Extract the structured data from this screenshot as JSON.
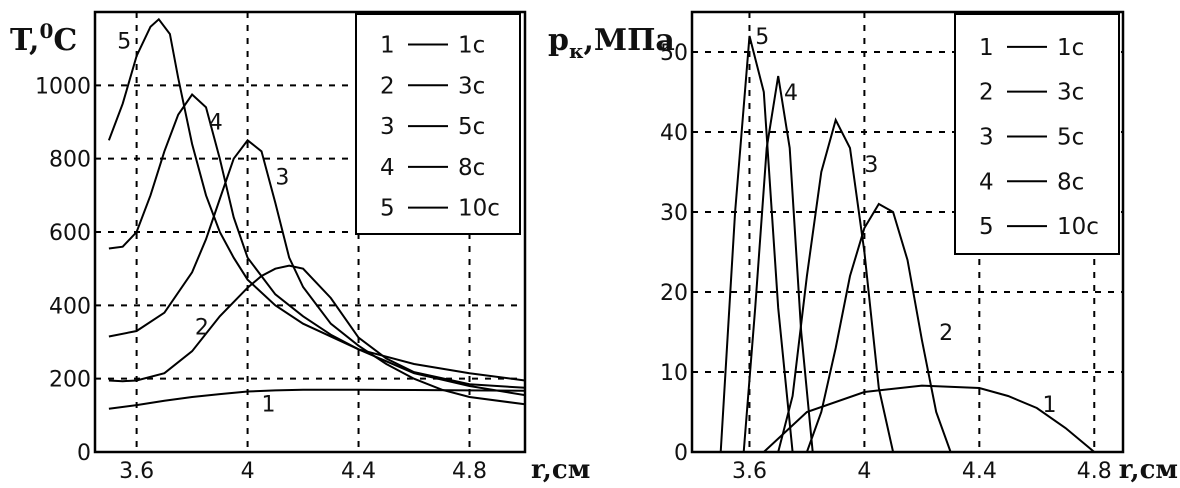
{
  "chart_data": [
    {
      "type": "line",
      "ylabel": "T,",
      "ylabel_sup": "0",
      "ylabel_end": "C",
      "xlabel": "r,см",
      "xlim": [
        3.45,
        5.0
      ],
      "ylim": [
        0,
        1200
      ],
      "xticks": [
        3.6,
        4,
        4.4,
        4.8
      ],
      "xtick_labels": [
        "3.6",
        "4",
        "4.4",
        "4.8"
      ],
      "yticks": [
        0,
        200,
        400,
        600,
        800,
        1000
      ],
      "ytick_labels": [
        "0",
        "200",
        "400",
        "600",
        "800",
        "1000"
      ],
      "grid": true,
      "legend_position": "top-right",
      "legend": [
        {
          "num": "1",
          "text": "1с"
        },
        {
          "num": "2",
          "text": "3с"
        },
        {
          "num": "3",
          "text": "5с"
        },
        {
          "num": "4",
          "text": "8с"
        },
        {
          "num": "5",
          "text": "10с"
        }
      ],
      "series": [
        {
          "label": "1",
          "label_at": [
            4.05,
            110
          ],
          "x": [
            3.5,
            3.6,
            3.7,
            3.8,
            3.9,
            4.0,
            4.1,
            4.2,
            4.4,
            4.6,
            4.8,
            5.0
          ],
          "y": [
            118,
            128,
            140,
            150,
            158,
            165,
            168,
            170,
            170,
            169,
            168,
            167
          ]
        },
        {
          "label": "2",
          "label_at": [
            3.81,
            320
          ],
          "x": [
            3.5,
            3.55,
            3.6,
            3.7,
            3.8,
            3.9,
            4.0,
            4.05,
            4.1,
            4.15,
            4.2,
            4.3,
            4.4,
            4.5,
            4.6,
            4.8,
            5.0
          ],
          "y": [
            195,
            193,
            195,
            215,
            275,
            370,
            448,
            480,
            500,
            508,
            500,
            420,
            312,
            255,
            218,
            185,
            175
          ]
        },
        {
          "label": "3",
          "label_at": [
            4.1,
            730
          ],
          "x": [
            3.5,
            3.6,
            3.7,
            3.8,
            3.85,
            3.9,
            3.95,
            4.0,
            4.05,
            4.1,
            4.15,
            4.2,
            4.3,
            4.4,
            4.5,
            4.6,
            4.7,
            4.8,
            5.0
          ],
          "y": [
            315,
            330,
            380,
            490,
            580,
            690,
            800,
            850,
            820,
            680,
            530,
            450,
            350,
            290,
            240,
            200,
            170,
            150,
            130
          ]
        },
        {
          "label": "4",
          "label_at": [
            3.86,
            880
          ],
          "x": [
            3.5,
            3.55,
            3.6,
            3.65,
            3.7,
            3.75,
            3.8,
            3.85,
            3.9,
            3.95,
            4.0,
            4.1,
            4.2,
            4.3,
            4.4,
            4.6,
            4.8,
            5.0
          ],
          "y": [
            555,
            560,
            600,
            700,
            820,
            920,
            975,
            940,
            800,
            640,
            530,
            430,
            370,
            320,
            280,
            215,
            180,
            155
          ]
        },
        {
          "label": "5",
          "label_at": [
            3.53,
            1100
          ],
          "x": [
            3.5,
            3.55,
            3.6,
            3.65,
            3.68,
            3.72,
            3.75,
            3.8,
            3.85,
            3.9,
            3.95,
            4.0,
            4.1,
            4.2,
            4.4,
            4.6,
            4.8,
            5.0
          ],
          "y": [
            850,
            950,
            1080,
            1160,
            1180,
            1140,
            1020,
            840,
            700,
            600,
            530,
            470,
            400,
            350,
            280,
            240,
            215,
            195
          ]
        }
      ]
    },
    {
      "type": "line",
      "ylabel": "p",
      "ylabel_sub": "к",
      "ylabel_end": ",МПа",
      "xlabel": "r,см",
      "xlim": [
        3.4,
        4.9
      ],
      "ylim": [
        0,
        55
      ],
      "xticks": [
        3.6,
        4,
        4.4,
        4.8
      ],
      "xtick_labels": [
        "3.6",
        "4",
        "4.4",
        "4.8"
      ],
      "yticks": [
        0,
        10,
        20,
        30,
        40,
        50
      ],
      "ytick_labels": [
        "0",
        "10",
        "20",
        "30",
        "40",
        "50"
      ],
      "grid": true,
      "legend_position": "top-right",
      "legend": [
        {
          "num": "1",
          "text": "1с"
        },
        {
          "num": "2",
          "text": "3с"
        },
        {
          "num": "3",
          "text": "5с"
        },
        {
          "num": "4",
          "text": "8с"
        },
        {
          "num": "5",
          "text": "10с"
        }
      ],
      "series": [
        {
          "label": "1",
          "label_at": [
            4.62,
            5
          ],
          "x": [
            3.65,
            3.8,
            4.0,
            4.2,
            4.4,
            4.5,
            4.6,
            4.7,
            4.8
          ],
          "y": [
            0,
            5,
            7.5,
            8.3,
            8,
            7,
            5.5,
            3,
            0
          ]
        },
        {
          "label": "2",
          "label_at": [
            4.26,
            14
          ],
          "x": [
            3.8,
            3.85,
            3.9,
            3.95,
            4.0,
            4.05,
            4.1,
            4.15,
            4.2,
            4.25,
            4.3
          ],
          "y": [
            0,
            5,
            13,
            22,
            28,
            31,
            30,
            24,
            14,
            5,
            0
          ]
        },
        {
          "label": "3",
          "label_at": [
            4.0,
            35
          ],
          "x": [
            3.7,
            3.75,
            3.8,
            3.85,
            3.9,
            3.95,
            4.0,
            4.05,
            4.1
          ],
          "y": [
            0,
            7,
            22,
            35,
            41.5,
            38,
            25,
            8,
            0
          ]
        },
        {
          "label": "4",
          "label_at": [
            3.72,
            44
          ],
          "x": [
            3.58,
            3.62,
            3.66,
            3.7,
            3.74,
            3.78,
            3.82
          ],
          "y": [
            0,
            18,
            38,
            47,
            38,
            15,
            0
          ]
        },
        {
          "label": "5",
          "label_at": [
            3.62,
            51
          ],
          "x": [
            3.5,
            3.55,
            3.6,
            3.65,
            3.7,
            3.75
          ],
          "y": [
            0,
            30,
            52,
            45,
            18,
            0
          ]
        }
      ]
    }
  ]
}
